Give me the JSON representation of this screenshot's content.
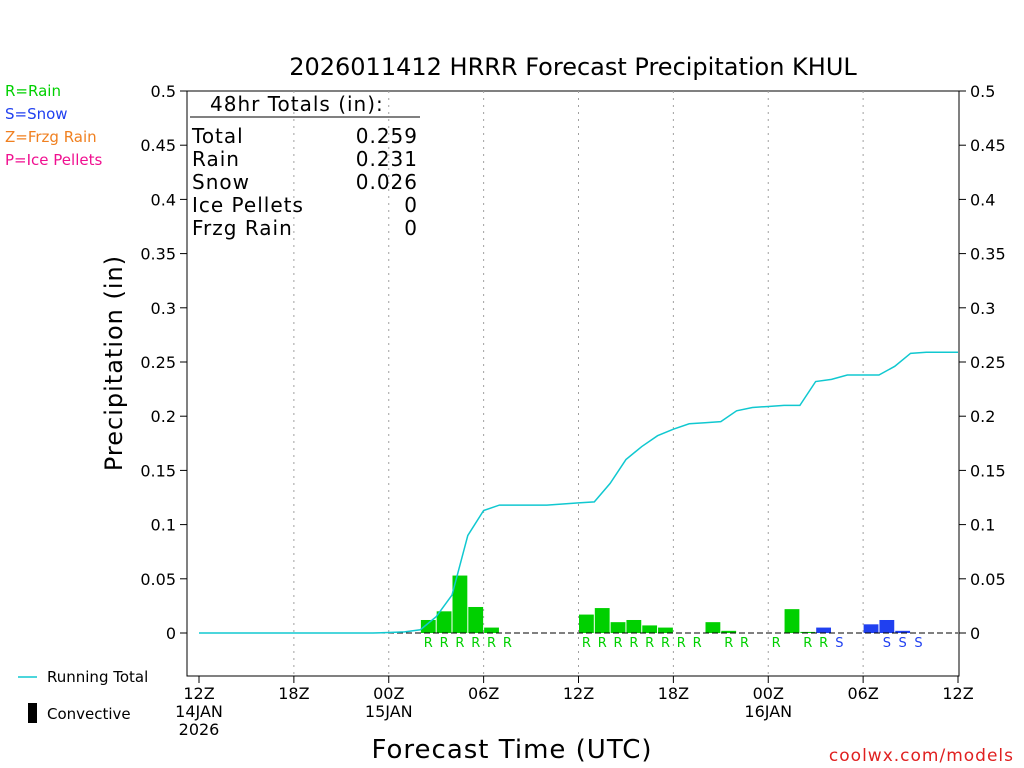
{
  "chart_data": {
    "type": "bar",
    "title": "2026011412 HRRR Forecast Precipitation KHUL",
    "ylabel": "Precipitation (in)",
    "xlabel": "Forecast Time (UTC)",
    "ylim": [
      -0.04,
      0.5
    ],
    "y_ticks": [
      0,
      0.05,
      0.1,
      0.15,
      0.2,
      0.25,
      0.3,
      0.35,
      0.4,
      0.45,
      0.5
    ],
    "y_tick_labels": [
      "0",
      "0.05",
      "0.1",
      "0.15",
      "0.2",
      "0.25",
      "0.3",
      "0.35",
      "0.4",
      "0.45",
      "0.5"
    ],
    "x_range_hours": [
      0,
      48
    ],
    "x_ticks": [
      {
        "hour": 0,
        "lines": [
          "12Z",
          "14JAN",
          "2026"
        ]
      },
      {
        "hour": 6,
        "lines": [
          "18Z"
        ]
      },
      {
        "hour": 12,
        "lines": [
          "00Z",
          "15JAN"
        ]
      },
      {
        "hour": 18,
        "lines": [
          "06Z"
        ]
      },
      {
        "hour": 24,
        "lines": [
          "12Z"
        ]
      },
      {
        "hour": 30,
        "lines": [
          "18Z"
        ]
      },
      {
        "hour": 36,
        "lines": [
          "00Z",
          "16JAN"
        ]
      },
      {
        "hour": 42,
        "lines": [
          "06Z"
        ]
      },
      {
        "hour": 48,
        "lines": [
          "12Z"
        ]
      }
    ],
    "bars": [
      {
        "hour": 15,
        "value": 0.012,
        "type": "rain"
      },
      {
        "hour": 16,
        "value": 0.02,
        "type": "rain"
      },
      {
        "hour": 17,
        "value": 0.053,
        "type": "rain"
      },
      {
        "hour": 18,
        "value": 0.024,
        "type": "rain"
      },
      {
        "hour": 19,
        "value": 0.005,
        "type": "rain"
      },
      {
        "hour": 25,
        "value": 0.017,
        "type": "rain"
      },
      {
        "hour": 26,
        "value": 0.023,
        "type": "rain"
      },
      {
        "hour": 27,
        "value": 0.01,
        "type": "rain"
      },
      {
        "hour": 28,
        "value": 0.012,
        "type": "rain"
      },
      {
        "hour": 29,
        "value": 0.007,
        "type": "rain"
      },
      {
        "hour": 30,
        "value": 0.005,
        "type": "rain"
      },
      {
        "hour": 33,
        "value": 0.01,
        "type": "rain"
      },
      {
        "hour": 34,
        "value": 0.002,
        "type": "rain"
      },
      {
        "hour": 38,
        "value": 0.022,
        "type": "rain"
      },
      {
        "hour": 39,
        "value": 0.001,
        "type": "rain"
      },
      {
        "hour": 40,
        "value": 0.005,
        "type": "snow"
      },
      {
        "hour": 43,
        "value": 0.008,
        "type": "snow"
      },
      {
        "hour": 44,
        "value": 0.012,
        "type": "snow"
      },
      {
        "hour": 45,
        "value": 0.002,
        "type": "snow"
      }
    ],
    "running_total": {
      "hours": [
        0,
        1,
        2,
        3,
        4,
        5,
        6,
        7,
        8,
        9,
        10,
        11,
        12,
        13,
        14,
        15,
        16,
        17,
        18,
        19,
        20,
        21,
        22,
        23,
        24,
        25,
        26,
        27,
        28,
        29,
        30,
        31,
        32,
        33,
        34,
        35,
        36,
        37,
        38,
        39,
        40,
        41,
        42,
        43,
        44,
        45,
        46,
        47,
        48
      ],
      "values": [
        0,
        0,
        0,
        0,
        0,
        0,
        0,
        0,
        0,
        0,
        0,
        0,
        0.0005,
        0.001,
        0.003,
        0.015,
        0.035,
        0.09,
        0.113,
        0.118,
        0.118,
        0.118,
        0.118,
        0.119,
        0.12,
        0.121,
        0.138,
        0.16,
        0.172,
        0.182,
        0.188,
        0.193,
        0.194,
        0.195,
        0.205,
        0.208,
        0.209,
        0.21,
        0.21,
        0.232,
        0.234,
        0.238,
        0.238,
        0.238,
        0.246,
        0.258,
        0.259,
        0.259,
        0.259
      ]
    },
    "ptype_labels": [
      {
        "hour": 15,
        "label": "R",
        "type": "rain"
      },
      {
        "hour": 16,
        "label": "R",
        "type": "rain"
      },
      {
        "hour": 17,
        "label": "R",
        "type": "rain"
      },
      {
        "hour": 18,
        "label": "R",
        "type": "rain"
      },
      {
        "hour": 19,
        "label": "R",
        "type": "rain"
      },
      {
        "hour": 20,
        "label": "R",
        "type": "rain"
      },
      {
        "hour": 25,
        "label": "R",
        "type": "rain"
      },
      {
        "hour": 26,
        "label": "R",
        "type": "rain"
      },
      {
        "hour": 27,
        "label": "R",
        "type": "rain"
      },
      {
        "hour": 28,
        "label": "R",
        "type": "rain"
      },
      {
        "hour": 29,
        "label": "R",
        "type": "rain"
      },
      {
        "hour": 30,
        "label": "R",
        "type": "rain"
      },
      {
        "hour": 31,
        "label": "R",
        "type": "rain"
      },
      {
        "hour": 32,
        "label": "R",
        "type": "rain"
      },
      {
        "hour": 34,
        "label": "R",
        "type": "rain"
      },
      {
        "hour": 35,
        "label": "R",
        "type": "rain"
      },
      {
        "hour": 37,
        "label": "R",
        "type": "rain"
      },
      {
        "hour": 39,
        "label": "R",
        "type": "rain"
      },
      {
        "hour": 40,
        "label": "R",
        "type": "rain"
      },
      {
        "hour": 41,
        "label": "S",
        "type": "snow"
      },
      {
        "hour": 44,
        "label": "S",
        "type": "snow"
      },
      {
        "hour": 45,
        "label": "S",
        "type": "snow"
      },
      {
        "hour": 46,
        "label": "S",
        "type": "snow"
      }
    ],
    "totals": {
      "header": "48hr Totals (in):",
      "rows": [
        {
          "label": "Total",
          "value": "0.259"
        },
        {
          "label": "Rain",
          "value": "0.231"
        },
        {
          "label": "Snow",
          "value": "0.026"
        },
        {
          "label": "Ice Pellets",
          "value": "0"
        },
        {
          "label": "Frzg Rain",
          "value": "0"
        }
      ]
    },
    "ptype_legend": [
      {
        "text": "R=Rain",
        "type": "rain"
      },
      {
        "text": "S=Snow",
        "type": "snow"
      },
      {
        "text": "Z=Frzg Rain",
        "type": "frzg"
      },
      {
        "text": "P=Ice Pellets",
        "type": "ice"
      }
    ],
    "series_legend": {
      "running_total": "Running Total",
      "convective": "Convective"
    },
    "credit": "coolwx.com/models",
    "colors": {
      "rain": "#00d000",
      "snow": "#2040f0",
      "frzg": "#f08020",
      "ice": "#f01090",
      "running_total": "#10c8d0",
      "grid": "#a0a0a0",
      "axis": "#000000",
      "convective": "#000000"
    }
  }
}
